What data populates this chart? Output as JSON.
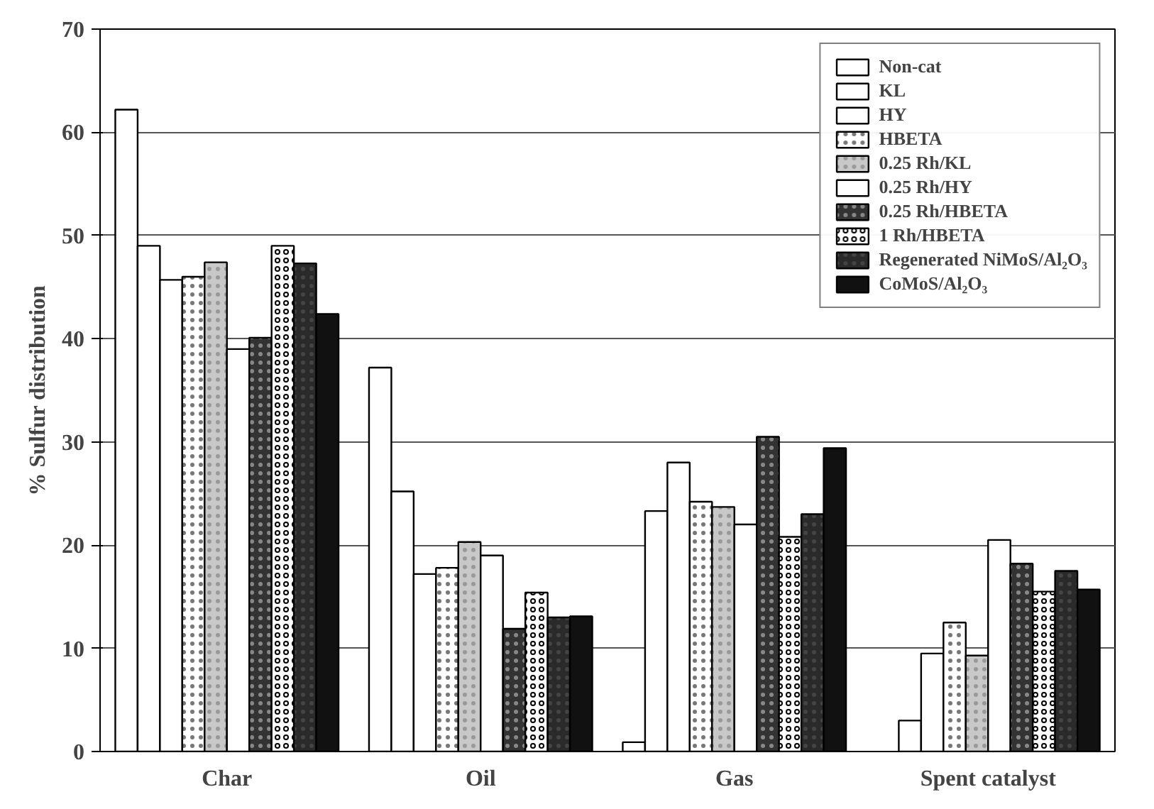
{
  "chart_data": {
    "type": "bar",
    "ylabel": "% Sulfur distribution",
    "categories": [
      "Char",
      "Oil",
      "Gas",
      "Spent catalyst"
    ],
    "series": [
      {
        "name": "Non-cat",
        "color": "#ffffff",
        "values": [
          62.2,
          37.2,
          0.9,
          null
        ]
      },
      {
        "name": "KL",
        "color": "#ffffff",
        "values": [
          49,
          25.2,
          23.3,
          3
        ]
      },
      {
        "name": "HY",
        "color": "#ffffff",
        "values": [
          45.7,
          17.2,
          28,
          9.5
        ]
      },
      {
        "name": "HBETA",
        "color": "#ffffff",
        "values": [
          46,
          17.8,
          24.2,
          12.5
        ]
      },
      {
        "name": "0.25 Rh/KL",
        "color": "#c8c8c8",
        "values": [
          47.4,
          20.3,
          23.7,
          9.3
        ]
      },
      {
        "name": "0.25 Rh/HY",
        "color": "#ffffff",
        "values": [
          39,
          19,
          22,
          20.5
        ]
      },
      {
        "name": "0.25 Rh/HBETA",
        "color": "#333333",
        "values": [
          40.1,
          11.9,
          30.5,
          18.2
        ]
      },
      {
        "name": "1 Rh/HBETA",
        "color": "#ffffff",
        "values": [
          49,
          15.4,
          20.8,
          15.5
        ]
      },
      {
        "name": "Regenerated NiMoS/Al₂O₃",
        "color": "#2a2a2a",
        "values": [
          47.3,
          13,
          23,
          17.5
        ]
      },
      {
        "name": "CoMoS/Al₂O₃",
        "color": "#111111",
        "values": [
          42.4,
          13.1,
          29.4,
          15.7
        ]
      }
    ],
    "ylim": [
      0,
      70
    ],
    "yticks": [
      0,
      10,
      20,
      30,
      40,
      50,
      60,
      70
    ],
    "grid": "y",
    "legend": "top right"
  }
}
